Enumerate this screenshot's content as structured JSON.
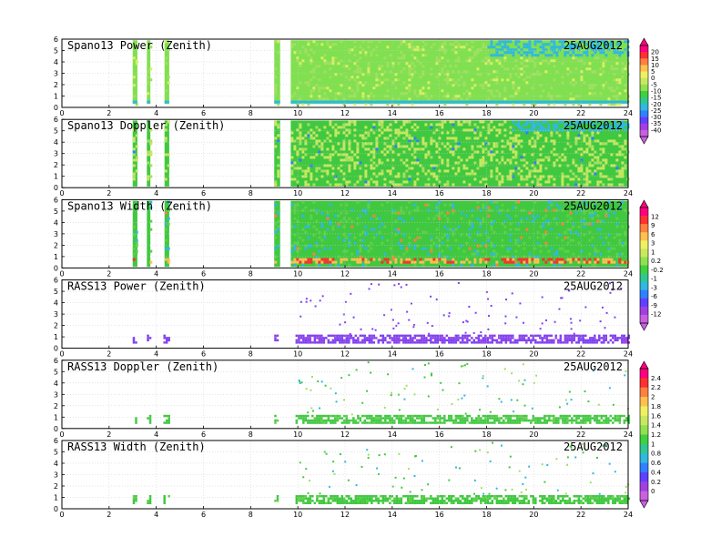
{
  "chart_data": [
    {
      "type": "heatmap",
      "title": "Spano13 Power (Zenith)",
      "date": "25AUG2012",
      "xlim": [
        0,
        24
      ],
      "ylim": [
        0,
        6
      ],
      "x_ticks": [
        "0",
        "2",
        "4",
        "6",
        "8",
        "10",
        "12",
        "14",
        "16",
        "18",
        "20",
        "22",
        "24"
      ],
      "y_ticks": [
        "0",
        "1",
        "2",
        "3",
        "4",
        "5",
        "6"
      ],
      "grid": true,
      "data_segments_hours": [
        [
          3.0,
          3.2
        ],
        [
          3.6,
          3.75
        ],
        [
          4.35,
          4.55
        ],
        [
          9.0,
          9.25
        ],
        [
          9.7,
          24
        ]
      ],
      "height_coverage_km": [
        0.3,
        5.9
      ],
      "colorscale": "power"
    },
    {
      "type": "heatmap",
      "title": "Spano13 Doppler (Zenith)",
      "date": "25AUG2012",
      "xlim": [
        0,
        24
      ],
      "ylim": [
        0,
        6
      ],
      "x_ticks": [
        "0",
        "2",
        "4",
        "6",
        "8",
        "10",
        "12",
        "14",
        "16",
        "18",
        "20",
        "22",
        "24"
      ],
      "y_ticks": [
        "0",
        "1",
        "2",
        "3",
        "4",
        "5",
        "6"
      ],
      "grid": true,
      "data_segments_hours": [
        [
          3.0,
          3.2
        ],
        [
          3.6,
          3.75
        ],
        [
          4.35,
          4.55
        ],
        [
          9.0,
          9.25
        ],
        [
          9.7,
          24
        ]
      ],
      "height_coverage_km": [
        0.1,
        5.9
      ],
      "colorscale": "doppler"
    },
    {
      "type": "heatmap",
      "title": "Spano13 Width (Zenith)",
      "date": "25AUG2012",
      "xlim": [
        0,
        24
      ],
      "ylim": [
        0,
        6
      ],
      "x_ticks": [
        "0",
        "2",
        "4",
        "6",
        "8",
        "10",
        "12",
        "14",
        "16",
        "18",
        "20",
        "22",
        "24"
      ],
      "y_ticks": [
        "0",
        "1",
        "2",
        "3",
        "4",
        "5",
        "6"
      ],
      "grid": true,
      "data_segments_hours": [
        [
          3.0,
          3.2
        ],
        [
          3.6,
          3.75
        ],
        [
          4.35,
          4.55
        ],
        [
          9.0,
          9.25
        ],
        [
          9.7,
          24
        ]
      ],
      "height_coverage_km": [
        0.1,
        5.9
      ],
      "colorscale": "width"
    },
    {
      "type": "heatmap",
      "title": "RASS13 Power (Zenith)",
      "date": "25AUG2012",
      "xlim": [
        0,
        24
      ],
      "ylim": [
        0,
        6
      ],
      "x_ticks": [
        "0",
        "2",
        "4",
        "6",
        "8",
        "10",
        "12",
        "14",
        "16",
        "18",
        "20",
        "22",
        "24"
      ],
      "y_ticks": [
        "0",
        "1",
        "2",
        "3",
        "4",
        "5",
        "6"
      ],
      "grid": true,
      "data_segments_hours": [
        [
          3.0,
          3.1
        ],
        [
          3.6,
          3.7
        ],
        [
          4.3,
          4.5
        ],
        [
          9.0,
          9.1
        ],
        [
          9.9,
          24
        ]
      ],
      "height_coverage_km": [
        0.4,
        1.2
      ],
      "colorscale": "width"
    },
    {
      "type": "heatmap",
      "title": "RASS13 Doppler (Zenith)",
      "date": "25AUG2012",
      "xlim": [
        0,
        24
      ],
      "ylim": [
        0,
        6
      ],
      "x_ticks": [
        "0",
        "2",
        "4",
        "6",
        "8",
        "10",
        "12",
        "14",
        "16",
        "18",
        "20",
        "22",
        "24"
      ],
      "y_ticks": [
        "0",
        "1",
        "2",
        "3",
        "4",
        "5",
        "6"
      ],
      "grid": true,
      "data_segments_hours": [
        [
          3.0,
          3.1
        ],
        [
          3.6,
          3.7
        ],
        [
          4.3,
          4.5
        ],
        [
          9.0,
          9.1
        ],
        [
          9.9,
          24
        ]
      ],
      "height_coverage_km": [
        0.4,
        1.2
      ],
      "colorscale": "rass"
    },
    {
      "type": "heatmap",
      "title": "RASS13 Width (Zenith)",
      "date": "25AUG2012",
      "xlim": [
        0,
        24
      ],
      "ylim": [
        0,
        6
      ],
      "x_ticks": [
        "0",
        "2",
        "4",
        "6",
        "8",
        "10",
        "12",
        "14",
        "16",
        "18",
        "20",
        "22",
        "24"
      ],
      "y_ticks": [
        "0",
        "1",
        "2",
        "3",
        "4",
        "5",
        "6"
      ],
      "grid": true,
      "data_segments_hours": [
        [
          3.0,
          3.1
        ],
        [
          3.6,
          3.7
        ],
        [
          4.3,
          4.5
        ],
        [
          9.0,
          9.1
        ],
        [
          9.9,
          24
        ]
      ],
      "height_coverage_km": [
        0.4,
        1.2
      ],
      "colorscale": "rass"
    }
  ],
  "colorbars": [
    {
      "labels": [
        "20",
        "15",
        "10",
        "5",
        "0",
        "-5",
        "-10",
        "-15",
        "-20",
        "-25",
        "-30",
        "-35",
        "-40"
      ],
      "colors": [
        "#ff0080",
        "#ff3030",
        "#ff8040",
        "#ffc050",
        "#f0f060",
        "#c8e860",
        "#90e050",
        "#40d040",
        "#30c890",
        "#30b8e0",
        "#3080ff",
        "#6040ff",
        "#a040e0",
        "#c860e0"
      ]
    },
    {
      "labels": [
        "12",
        "9",
        "6",
        "3",
        "1",
        "0.2",
        "-0.2",
        "-1",
        "-3",
        "-6",
        "-9",
        "-12"
      ],
      "colors": [
        "#ff0080",
        "#ff3030",
        "#ff8040",
        "#ffc050",
        "#f0f060",
        "#c8e860",
        "#90e050",
        "#40d040",
        "#30c890",
        "#30b8e0",
        "#3080ff",
        "#6040ff",
        "#a040e0",
        "#c860e0"
      ]
    },
    {
      "labels": [
        "2.4",
        "2.2",
        "2",
        "1.8",
        "1.6",
        "1.4",
        "1.2",
        "1",
        "0.8",
        "0.6",
        "0.4",
        "0.2",
        "0"
      ],
      "colors": [
        "#ff0080",
        "#ff3030",
        "#ff8040",
        "#ffc050",
        "#f0f060",
        "#c8e860",
        "#90e050",
        "#40d040",
        "#30c890",
        "#30b8e0",
        "#3080ff",
        "#6040ff",
        "#a040e0",
        "#c860e0"
      ]
    }
  ]
}
